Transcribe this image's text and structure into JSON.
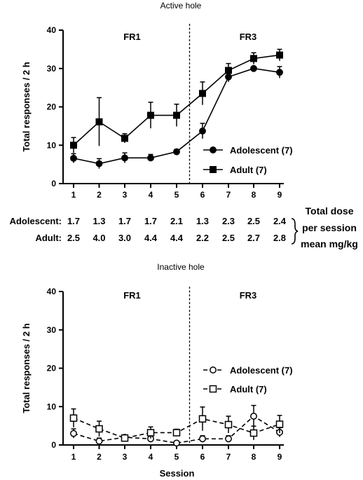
{
  "chart_data": [
    {
      "type": "line",
      "title": "Active hole",
      "xlabel": "",
      "ylabel": "Total responses / 2 h",
      "ylim": [
        0,
        40
      ],
      "yticks": [
        0,
        10,
        20,
        30,
        40
      ],
      "categories": [
        "1",
        "2",
        "3",
        "4",
        "5",
        "6",
        "7",
        "8",
        "9"
      ],
      "phase_labels": [
        "FR1",
        "FR3"
      ],
      "phase_boundary_after_session": 5,
      "legend_position": "right-middle",
      "series": [
        {
          "name": "Adolescent (7)",
          "marker": "filled-circle",
          "line": "solid",
          "values": [
            6.6,
            5.2,
            6.7,
            6.7,
            8.3,
            13.7,
            27.8,
            30.0,
            29.0
          ],
          "error": [
            1.2,
            1.3,
            1.3,
            0.9,
            0.6,
            2.0,
            1.3,
            0.5,
            1.5
          ]
        },
        {
          "name": "Adult  (7)",
          "marker": "filled-square",
          "line": "solid",
          "values": [
            10.0,
            16.1,
            11.8,
            17.8,
            17.8,
            23.5,
            29.5,
            32.6,
            33.5
          ],
          "error": [
            2.0,
            6.3,
            1.2,
            3.4,
            2.9,
            3.0,
            1.8,
            1.5,
            1.5
          ]
        }
      ],
      "dose_table": {
        "row_labels": [
          "Adolescent:",
          "Adult:"
        ],
        "rows": [
          [
            "1.7",
            "1.3",
            "1.7",
            "1.7",
            "2.1",
            "1.3",
            "2.3",
            "2.5",
            "2.4"
          ],
          [
            "2.5",
            "4.0",
            "3.0",
            "4.4",
            "4.4",
            "2.2",
            "2.5",
            "2.7",
            "2.8"
          ]
        ],
        "caption_lines": [
          "Total dose",
          "per session",
          "mean mg/kg"
        ]
      }
    },
    {
      "type": "line",
      "title": "Inactive hole",
      "xlabel": "Session",
      "ylabel": "Total responses / 2 h",
      "ylim": [
        0,
        40
      ],
      "yticks": [
        0,
        10,
        20,
        30,
        40
      ],
      "categories": [
        "1",
        "2",
        "3",
        "4",
        "5",
        "6",
        "7",
        "8",
        "9"
      ],
      "phase_labels": [
        "FR1",
        "FR3"
      ],
      "phase_boundary_after_session": 5,
      "legend_position": "right-middle",
      "series": [
        {
          "name": "Adolescent (7)",
          "marker": "open-circle",
          "line": "dashed",
          "values": [
            3.0,
            1.0,
            2.0,
            1.6,
            0.5,
            1.6,
            1.6,
            7.5,
            3.3
          ],
          "error": [
            1.2,
            0.8,
            0.6,
            0.8,
            0.4,
            0.8,
            0.8,
            2.8,
            1.2
          ]
        },
        {
          "name": "Adult  (7)",
          "marker": "open-square",
          "line": "dashed",
          "values": [
            7.0,
            4.2,
            1.8,
            3.2,
            3.2,
            6.8,
            5.3,
            3.1,
            5.4
          ],
          "error": [
            2.4,
            2.0,
            0.6,
            1.5,
            0.9,
            3.1,
            2.2,
            1.8,
            2.3
          ]
        }
      ]
    }
  ]
}
